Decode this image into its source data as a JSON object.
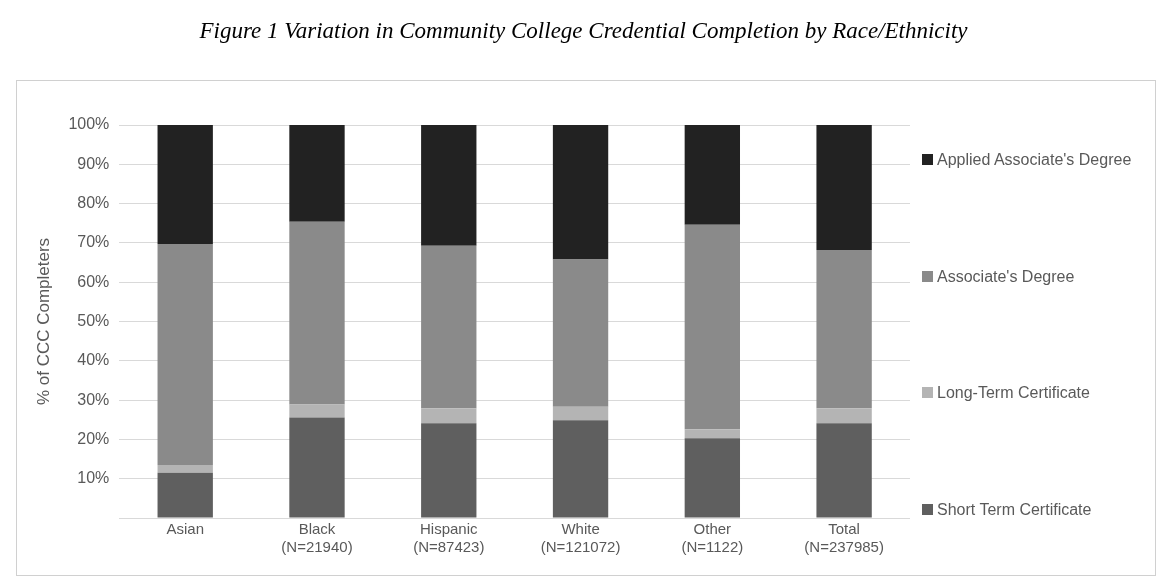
{
  "chart_data": {
    "type": "bar",
    "title": "Figure 1 Variation in Community College Credential Completion by Race/Ethnicity",
    "ylabel": "% of CCC Completers",
    "categories": [
      "Asian",
      "Black (N=21940)",
      "Hispanic (N=87423)",
      "White (N=121072)",
      "Other (N=1122)",
      "Total (N=237985)"
    ],
    "stacked": true,
    "series": [
      {
        "name": "Short Term Certificate",
        "color": "#5f5f5f",
        "values": [
          11.5,
          25.6,
          24.1,
          24.9,
          20.3,
          24.1
        ]
      },
      {
        "name": "Long-Term Certificate",
        "color": "#b4b4b4",
        "values": [
          2.0,
          3.3,
          3.8,
          3.4,
          2.3,
          3.8
        ]
      },
      {
        "name": "Associate's Degree",
        "color": "#8a8a8a",
        "values": [
          56.2,
          46.5,
          41.4,
          37.5,
          52.0,
          40.3
        ]
      },
      {
        "name": "Applied Associate's Degree",
        "color": "#222222",
        "values": [
          30.3,
          24.6,
          30.7,
          34.2,
          25.4,
          31.8
        ]
      }
    ],
    "ylim": [
      0,
      100
    ],
    "yticks": [
      {
        "value": 0,
        "label": null
      },
      {
        "value": 10,
        "label": "10%"
      },
      {
        "value": 20,
        "label": "20%"
      },
      {
        "value": 30,
        "label": "30%"
      },
      {
        "value": 40,
        "label": "40%"
      },
      {
        "value": 50,
        "label": "50%"
      },
      {
        "value": 60,
        "label": "60%"
      },
      {
        "value": 70,
        "label": "70%"
      },
      {
        "value": 80,
        "label": "80%"
      },
      {
        "value": 90,
        "label": "90%"
      },
      {
        "value": 100,
        "label": "100%"
      }
    ],
    "grid": "y",
    "legend": "right"
  }
}
